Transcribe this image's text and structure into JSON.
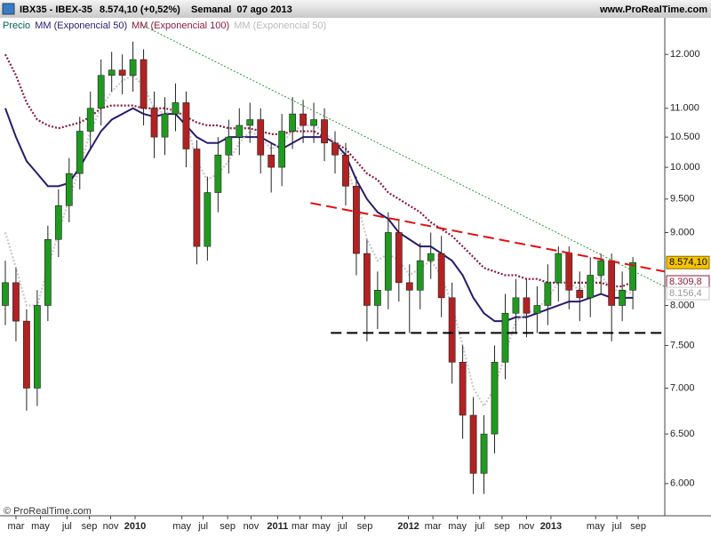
{
  "header": {
    "symbol": "IBX35 - IBEX-35",
    "price": "8.574,10 (+0,52%)",
    "period": "Semanal  07 ago 2013",
    "site": "www.ProRealTime.com"
  },
  "footer": "© ProRealTime.com",
  "chart_data": {
    "type": "candlestick",
    "price_name": "Precio",
    "price_color": "#006060",
    "up_color": "#1f9a1f",
    "down_color": "#b22222",
    "last_label": "8.574,10",
    "log_scale": true,
    "ylim": [
      5696,
      12731
    ],
    "yticks": [
      {
        "value": 6000,
        "label": "6.000"
      },
      {
        "value": 6500,
        "label": "6.500"
      },
      {
        "value": 7000,
        "label": "7.000"
      },
      {
        "value": 7500,
        "label": "7.500"
      },
      {
        "value": 8000,
        "label": "8.000"
      },
      {
        "value": 9000,
        "label": "9.000"
      },
      {
        "value": 9500,
        "label": "9.500"
      },
      {
        "value": 10000,
        "label": "10.000"
      },
      {
        "value": 10500,
        "label": "10.500"
      },
      {
        "value": 11000,
        "label": "11.000"
      },
      {
        "value": 12000,
        "label": "12.000"
      }
    ],
    "xlim": [
      -0.5,
      62
    ],
    "xticks": [
      {
        "value": 1.0,
        "label": "mar"
      },
      {
        "value": 3.3,
        "label": "may"
      },
      {
        "value": 5.8,
        "label": "jul"
      },
      {
        "value": 7.9,
        "label": "sep"
      },
      {
        "value": 9.9,
        "label": "nov"
      },
      {
        "value": 12.2,
        "label": "2010"
      },
      {
        "value": 16.6,
        "label": "may"
      },
      {
        "value": 18.6,
        "label": "jul"
      },
      {
        "value": 20.9,
        "label": "sep"
      },
      {
        "value": 23.1,
        "label": "nov"
      },
      {
        "value": 25.6,
        "label": "2011"
      },
      {
        "value": 27.7,
        "label": "mar"
      },
      {
        "value": 29.7,
        "label": "may"
      },
      {
        "value": 31.7,
        "label": "jul"
      },
      {
        "value": 33.8,
        "label": "sep"
      },
      {
        "value": 37.9,
        "label": "2012"
      },
      {
        "value": 40.2,
        "label": "mar"
      },
      {
        "value": 42.5,
        "label": "may"
      },
      {
        "value": 44.6,
        "label": "jul"
      },
      {
        "value": 46.7,
        "label": "sep"
      },
      {
        "value": 49.0,
        "label": "nov"
      },
      {
        "value": 51.3,
        "label": "2013"
      },
      {
        "value": 55.5,
        "label": "may"
      },
      {
        "value": 57.5,
        "label": "jul"
      },
      {
        "value": 59.5,
        "label": "sep"
      }
    ],
    "open": [
      8000,
      8300,
      7800,
      7000,
      8000,
      8900,
      9400,
      9900,
      10600,
      11000,
      11600,
      11700,
      11600,
      11900,
      11000,
      10500,
      10900,
      11100,
      10300,
      8800,
      9600,
      10200,
      10500,
      10700,
      10800,
      10200,
      10000,
      10600,
      10900,
      10700,
      10800,
      10400,
      10200,
      9700,
      8700,
      8000,
      8200,
      9000,
      8300,
      8200,
      8600,
      8700,
      8100,
      7300,
      6700,
      6100,
      6500,
      7300,
      7900,
      8100,
      7900,
      8000,
      8300,
      8700,
      8200,
      8100,
      8400,
      8600,
      8000,
      8200
    ],
    "high": [
      8600,
      8500,
      7950,
      8200,
      9100,
      9650,
      10150,
      10850,
      11300,
      11900,
      12050,
      12000,
      12250,
      12100,
      11300,
      11200,
      11450,
      11300,
      10450,
      9850,
      10500,
      10800,
      11000,
      11100,
      11000,
      10400,
      10900,
      11200,
      11150,
      11100,
      11000,
      10600,
      10400,
      9850,
      8900,
      8450,
      9300,
      9200,
      8550,
      8850,
      9000,
      8950,
      8300,
      7500,
      6900,
      6700,
      7500,
      8150,
      8350,
      8350,
      8250,
      8550,
      8800,
      8800,
      8450,
      8650,
      8700,
      8700,
      8450,
      8650
    ],
    "low": [
      7750,
      7550,
      6750,
      6800,
      7800,
      8650,
      9150,
      9650,
      10300,
      10700,
      11300,
      11250,
      11300,
      10700,
      10150,
      10200,
      10600,
      10000,
      8550,
      8600,
      9300,
      9900,
      10200,
      10400,
      9900,
      9600,
      9700,
      10300,
      10400,
      10400,
      10100,
      9900,
      9400,
      8400,
      7550,
      7700,
      7950,
      8050,
      7650,
      7950,
      8350,
      7850,
      7050,
      6450,
      5900,
      5900,
      6300,
      7100,
      7650,
      7600,
      7650,
      7750,
      8050,
      7950,
      7800,
      7850,
      8150,
      7550,
      7800,
      7950
    ],
    "close": [
      8300,
      7800,
      7000,
      8000,
      8900,
      9400,
      9900,
      10600,
      11000,
      11600,
      11700,
      11600,
      11900,
      11000,
      10500,
      10900,
      11100,
      10300,
      8800,
      9600,
      10200,
      10500,
      10700,
      10800,
      10200,
      10000,
      10600,
      10900,
      10700,
      10800,
      10400,
      10200,
      9700,
      8700,
      8000,
      8200,
      9000,
      8300,
      8200,
      8600,
      8700,
      8100,
      7300,
      6700,
      6100,
      6500,
      7300,
      7900,
      8100,
      7900,
      8000,
      8300,
      8700,
      8200,
      8100,
      8400,
      8600,
      8000,
      8200,
      8574.1
    ],
    "series": [
      {
        "name": "MM (Exponencial 50)",
        "color": "#2a1a6e",
        "style": "solid",
        "values": [
          11000,
          10500,
          10100,
          9900,
          9700,
          9700,
          9750,
          10000,
          10300,
          10600,
          10800,
          10900,
          11000,
          10900,
          10850,
          10900,
          10900,
          10700,
          10500,
          10400,
          10400,
          10500,
          10500,
          10500,
          10500,
          10400,
          10300,
          10400,
          10500,
          10500,
          10500,
          10400,
          10200,
          9800,
          9500,
          9300,
          9200,
          9000,
          8900,
          8800,
          8800,
          8700,
          8600,
          8400,
          8100,
          7900,
          7800,
          7800,
          7850,
          7850,
          7900,
          7950,
          8000,
          8050,
          8050,
          8100,
          8150,
          8100,
          8100,
          8100
        ]
      },
      {
        "name": "MM (Exponencial 100)",
        "color": "#8b1a3a",
        "style": "dotted",
        "last_label": "8.309,8",
        "values": [
          12000,
          11600,
          11100,
          10800,
          10700,
          10650,
          10700,
          10750,
          10850,
          11000,
          11050,
          11050,
          11050,
          11000,
          11000,
          11000,
          10950,
          10850,
          10750,
          10700,
          10700,
          10650,
          10650,
          10650,
          10600,
          10550,
          10550,
          10600,
          10600,
          10600,
          10500,
          10400,
          10300,
          10100,
          9900,
          9800,
          9600,
          9500,
          9400,
          9300,
          9150,
          9050,
          8950,
          8800,
          8650,
          8500,
          8450,
          8400,
          8400,
          8350,
          8350,
          8300,
          8300,
          8300,
          8300,
          8300,
          8300,
          8250,
          8250,
          8309.8
        ]
      },
      {
        "name": "MM (Exponencial 50)",
        "color": "#c8c8c8",
        "style": "dotted",
        "last_label": "8.156,4",
        "values": [
          9000,
          8500,
          8000,
          8000,
          8500,
          9000,
          9500,
          10000,
          10600,
          11000,
          11300,
          11500,
          11600,
          11400,
          11000,
          10900,
          11000,
          10800,
          10100,
          9800,
          9900,
          10100,
          10400,
          10600,
          10500,
          10300,
          10400,
          10600,
          10700,
          10700,
          10600,
          10400,
          10100,
          9500,
          8900,
          8600,
          8700,
          8600,
          8400,
          8500,
          8600,
          8400,
          8000,
          7500,
          7000,
          6800,
          7000,
          7400,
          7800,
          7900,
          7950,
          8100,
          8300,
          8300,
          8200,
          8300,
          8400,
          8200,
          8200,
          8156.4
        ]
      }
    ],
    "trendlines": [
      {
        "color": "#2a9a2a",
        "style": "dotted",
        "x": [
          12.8,
          62
        ],
        "y": [
          12590,
          8246
        ]
      },
      {
        "color": "#e01010",
        "style": "dashed",
        "x": [
          28.7,
          62
        ],
        "y": [
          9440,
          8450
        ]
      },
      {
        "color": "#000000",
        "style": "dashed",
        "x": [
          30.6,
          62
        ],
        "y": [
          7653,
          7653
        ]
      }
    ]
  }
}
